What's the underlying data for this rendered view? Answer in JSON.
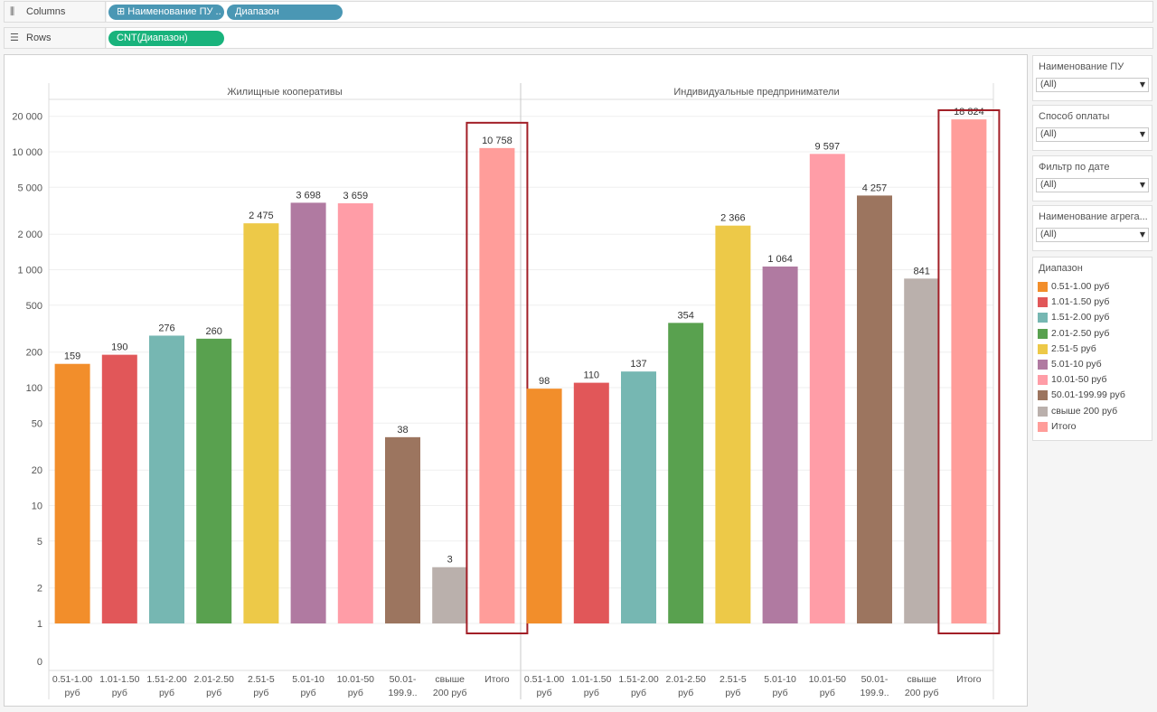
{
  "shelves": {
    "columns": {
      "label": "Columns",
      "icon": "columns-icon",
      "pills": [
        "⊞ Наименование ПУ ..",
        "Диапазон"
      ]
    },
    "rows": {
      "label": "Rows",
      "icon": "rows-icon",
      "pills": [
        "CNT(Диапазон)"
      ]
    }
  },
  "filters": [
    {
      "title": "Наименование ПУ",
      "value": "(All)"
    },
    {
      "title": "Способ оплаты",
      "value": "(All)"
    },
    {
      "title": "Фильтр по дате",
      "value": "(All)"
    },
    {
      "title": "Наименование агрега...",
      "value": "(All)"
    }
  ],
  "legend": {
    "title": "Диапазон",
    "items": [
      {
        "label": "0.51-1.00 руб",
        "color": "#f28e2b"
      },
      {
        "label": "1.01-1.50 руб",
        "color": "#e15759"
      },
      {
        "label": "1.51-2.00 руб",
        "color": "#76b7b2"
      },
      {
        "label": "2.01-2.50 руб",
        "color": "#59a14f"
      },
      {
        "label": "2.51-5 руб",
        "color": "#edc948"
      },
      {
        "label": "5.01-10 руб",
        "color": "#b07aa1"
      },
      {
        "label": "10.01-50 руб",
        "color": "#ff9da7"
      },
      {
        "label": "50.01-199.99 руб",
        "color": "#9c755f"
      },
      {
        "label": "свыше 200 руб",
        "color": "#bab0ac"
      },
      {
        "label": "Итого",
        "color": "#ff9d9a"
      }
    ]
  },
  "chart_data": {
    "type": "bar",
    "scale": "log",
    "y_ticks": [
      {
        "v": 0,
        "label": "0"
      },
      {
        "v": 1,
        "label": "1"
      },
      {
        "v": 2,
        "label": "2"
      },
      {
        "v": 5,
        "label": "5"
      },
      {
        "v": 10,
        "label": "10"
      },
      {
        "v": 20,
        "label": "20"
      },
      {
        "v": 50,
        "label": "50"
      },
      {
        "v": 100,
        "label": "100"
      },
      {
        "v": 200,
        "label": "200"
      },
      {
        "v": 500,
        "label": "500"
      },
      {
        "v": 1000,
        "label": "1 000"
      },
      {
        "v": 2000,
        "label": "2 000"
      },
      {
        "v": 5000,
        "label": "5 000"
      },
      {
        "v": 10000,
        "label": "10 000"
      },
      {
        "v": 20000,
        "label": "20 000"
      }
    ],
    "categories": [
      [
        "0.51-1.00",
        "руб"
      ],
      [
        "1.01-1.50",
        "руб"
      ],
      [
        "1.51-2.00",
        "руб"
      ],
      [
        "2.01-2.50",
        "руб"
      ],
      [
        "2.51-5",
        "руб"
      ],
      [
        "5.01-10",
        "руб"
      ],
      [
        "10.01-50",
        "руб"
      ],
      [
        "50.01-",
        "199.9.."
      ],
      [
        "свыше",
        "200 руб"
      ],
      [
        "Итого",
        ""
      ]
    ],
    "colors": [
      "#f28e2b",
      "#e15759",
      "#76b7b2",
      "#59a14f",
      "#edc948",
      "#b07aa1",
      "#ff9da7",
      "#9c755f",
      "#bab0ac",
      "#ff9d9a"
    ],
    "highlight_color": "#a21f27",
    "panes": [
      {
        "title": "Жилищные кооперативы",
        "values": [
          159,
          190,
          276,
          260,
          2475,
          3698,
          3659,
          38,
          3,
          10758
        ],
        "labels": [
          "159",
          "190",
          "276",
          "260",
          "2 475",
          "3 698",
          "3 659",
          "38",
          "3",
          "10 758"
        ]
      },
      {
        "title": "Индивидуальные предприниматели",
        "values": [
          98,
          110,
          137,
          354,
          2366,
          1064,
          9597,
          4257,
          841,
          18824
        ],
        "labels": [
          "98",
          "110",
          "137",
          "354",
          "2 366",
          "1 064",
          "9 597",
          "4 257",
          "841",
          "18 824"
        ]
      }
    ]
  }
}
